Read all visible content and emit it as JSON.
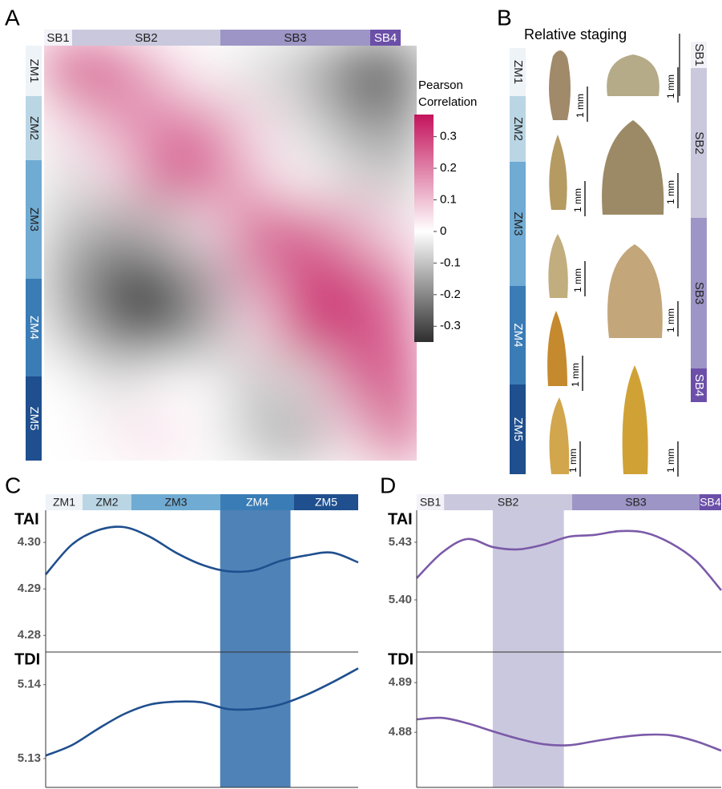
{
  "chart_data": [
    {
      "type": "heatmap",
      "panel": "A",
      "col_stages": [
        {
          "label": "SB1",
          "color": "#f2f2f8"
        },
        {
          "label": "SB2",
          "color": "#c9c8dd"
        },
        {
          "label": "SB3",
          "color": "#9c95c5"
        },
        {
          "label": "SB4",
          "color": "#6b4fa8"
        }
      ],
      "row_stages": [
        {
          "label": "ZM1",
          "color": "#eef3f8"
        },
        {
          "label": "ZM2",
          "color": "#bad6e5"
        },
        {
          "label": "ZM3",
          "color": "#70abd3"
        },
        {
          "label": "ZM4",
          "color": "#3a7cb6"
        },
        {
          "label": "ZM5",
          "color": "#1f4f8e"
        }
      ],
      "values": [
        [
          0.3,
          0.25,
          0.1,
          0,
          -0.05,
          -0.1,
          -0.25,
          -0.3
        ],
        [
          0.05,
          0.15,
          0.2,
          0.2,
          0.05,
          -0.05,
          -0.15,
          -0.2
        ],
        [
          -0.05,
          0.05,
          0.25,
          0.25,
          0.1,
          0,
          -0.05,
          -0.1
        ],
        [
          -0.1,
          -0.15,
          -0.1,
          0.05,
          0.25,
          0.25,
          0.15,
          0.05
        ],
        [
          -0.15,
          -0.3,
          -0.3,
          -0.15,
          0.15,
          0.3,
          0.3,
          0.2
        ],
        [
          -0.1,
          -0.25,
          -0.3,
          -0.15,
          0.05,
          0.3,
          0.3,
          0.25
        ],
        [
          0,
          -0.05,
          0,
          0,
          -0.1,
          -0.05,
          0.2,
          0.3
        ],
        [
          0,
          0.02,
          0.05,
          0,
          -0.1,
          -0.15,
          0.05,
          0.3
        ]
      ],
      "colorbar_title": [
        "Pearson",
        "Correlation"
      ],
      "zlim": [
        -0.35,
        0.37
      ],
      "zticks": [
        0.3,
        0.2,
        0.1,
        0,
        -0.1,
        -0.2,
        -0.3
      ],
      "colors": {
        "low": "#2e2e2e",
        "mid": "#ffffff",
        "high": "#c4145c"
      }
    },
    {
      "type": "image-panel",
      "panel": "B",
      "title": "Relative staging",
      "row_stages": [
        {
          "label": "ZM1",
          "color": "#eef3f8"
        },
        {
          "label": "ZM2",
          "color": "#bad6e5"
        },
        {
          "label": "ZM3",
          "color": "#70abd3"
        },
        {
          "label": "ZM4",
          "color": "#3a7cb6"
        },
        {
          "label": "ZM5",
          "color": "#1f4f8e"
        }
      ],
      "sb_stages": [
        {
          "label": "SB1",
          "color": "#f2f2f8"
        },
        {
          "label": "SB2",
          "color": "#c9c8dd"
        },
        {
          "label": "SB3",
          "color": "#9c95c5"
        },
        {
          "label": "SB4",
          "color": "#6b4fa8"
        }
      ],
      "scale_labels": [
        "1 mm",
        "1 mm",
        "1 mm",
        "1 mm",
        "1 mm",
        "1 mm",
        "1 mm",
        "1 mm",
        "1 mm"
      ]
    },
    {
      "type": "line",
      "panel": "C",
      "stages": [
        {
          "label": "ZM1",
          "color": "#eef3f8"
        },
        {
          "label": "ZM2",
          "color": "#bad6e5"
        },
        {
          "label": "ZM3",
          "color": "#70abd3"
        },
        {
          "label": "ZM4",
          "color": "#3a7cb6"
        },
        {
          "label": "ZM5",
          "color": "#1f4f8e"
        }
      ],
      "x": [
        0,
        1,
        2,
        3,
        4,
        5,
        6,
        7,
        8,
        9,
        10,
        11,
        12
      ],
      "xlim": [
        0,
        12
      ],
      "highlight": [
        6.7,
        9.4
      ],
      "highlight_color": "#4f82b6",
      "color": "#1f4f8e",
      "subplots": [
        {
          "label": "TAI",
          "ylim": [
            4.2766,
            4.3064
          ],
          "yticks": [
            {
              "value": 4.3,
              "label": "4.30"
            },
            4.29,
            4.28
          ],
          "values": [
            4.2931,
            4.2995,
            4.3026,
            4.3033,
            4.3012,
            4.2978,
            4.2952,
            4.2938,
            4.294,
            4.296,
            4.2972,
            4.2978,
            4.2957
          ]
        },
        {
          "label": "TDI",
          "ylim": [
            5.1261,
            5.1443
          ],
          "yticks": [
            5.14,
            5.13
          ],
          "values": [
            5.1304,
            5.1318,
            5.134,
            5.136,
            5.1373,
            5.1377,
            5.1376,
            5.1367,
            5.1367,
            5.1373,
            5.1386,
            5.1403,
            5.1422
          ]
        }
      ]
    },
    {
      "type": "line",
      "panel": "D",
      "stages": [
        {
          "label": "SB1",
          "color": "#f2f2f8"
        },
        {
          "label": "SB2",
          "color": "#c9c8dd"
        },
        {
          "label": "SB3",
          "color": "#9c95c5"
        },
        {
          "label": "SB4",
          "color": "#6b4fa8"
        }
      ],
      "x": [
        0,
        1,
        2,
        3,
        4,
        5,
        6,
        7,
        8,
        9,
        10,
        11,
        12
      ],
      "xlim": [
        0,
        12
      ],
      "highlight": [
        3.0,
        5.8
      ],
      "highlight_color": "#cac8de",
      "color": "#7b5aa8",
      "subplots": [
        {
          "label": "TAI",
          "ylim": [
            5.3733,
            5.4454
          ],
          "yticks": [
            5.43,
            {
              "value": 5.4,
              "label": "5.40"
            }
          ],
          "values": [
            5.4113,
            5.4246,
            5.4317,
            5.4275,
            5.4263,
            5.4288,
            5.4329,
            5.4338,
            5.4358,
            5.435,
            5.4296,
            5.4204,
            5.405
          ]
        },
        {
          "label": "TDI",
          "ylim": [
            4.8689,
            4.896
          ],
          "yticks": [
            4.89,
            4.88
          ],
          "values": [
            4.8826,
            4.8829,
            4.8818,
            4.8802,
            4.8787,
            4.8776,
            4.8774,
            4.8782,
            4.879,
            4.8795,
            4.8794,
            4.8782,
            4.8763
          ]
        }
      ]
    }
  ]
}
